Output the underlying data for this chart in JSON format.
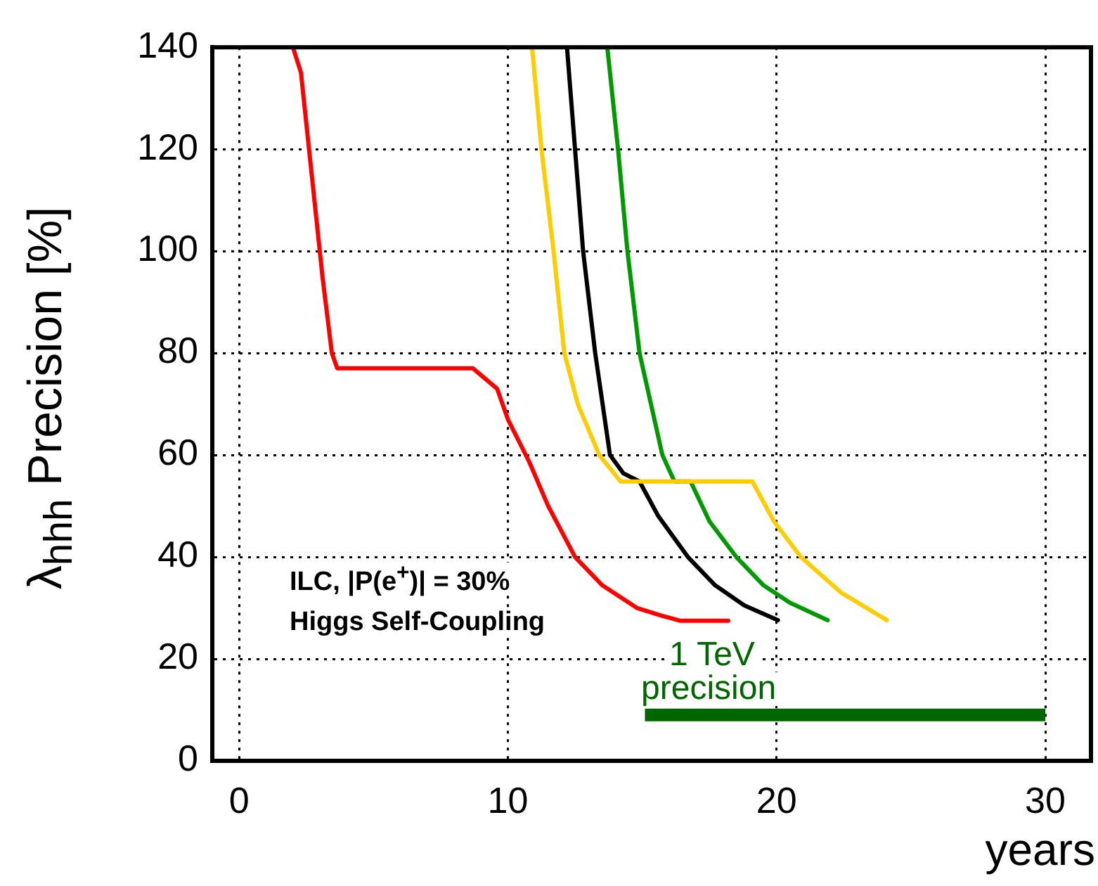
{
  "chart_data": {
    "type": "line",
    "xlabel": "years",
    "ylabel": "λ$_{hhh}$ Precision [%]",
    "xlim": [
      -1,
      31.7
    ],
    "ylim": [
      0,
      140
    ],
    "xticks": [
      0,
      10,
      20,
      30
    ],
    "yticks": [
      0,
      20,
      40,
      60,
      80,
      100,
      120,
      140
    ],
    "grid": true,
    "marker": "none",
    "annotations": [
      "ILC, |P(e$^{+}$)| = 30%",
      "Higgs Self-Coupling",
      "1 TeV",
      "precision"
    ],
    "series": [
      {
        "color": "#ff0000",
        "x": [
          2.0,
          2.3,
          2.7,
          3.1,
          3.45,
          3.65,
          8.7,
          9.6,
          10.0,
          10.8,
          11.5,
          12.5,
          13.5,
          14.8,
          15.7,
          16.4,
          18.2
        ],
        "values": [
          140,
          135,
          115,
          95,
          80,
          77,
          77,
          73,
          67,
          58.6,
          50,
          40,
          34.5,
          30,
          28.5,
          27.5,
          27.5
        ]
      },
      {
        "color": "#ffcc00",
        "x": [
          10.9,
          11.25,
          11.7,
          12.1,
          12.6,
          13.4,
          14.2,
          19.1,
          19.9,
          20.9,
          22.4,
          24.1
        ],
        "values": [
          140,
          120,
          100,
          80,
          70,
          60,
          54.8,
          54.8,
          47,
          40,
          33,
          27.6
        ]
      },
      {
        "color": "#000000",
        "x": [
          12.2,
          12.5,
          12.8,
          13.25,
          13.8,
          14.3,
          14.9,
          15.6,
          16.7,
          17.7,
          18.8,
          20.05
        ],
        "values": [
          140,
          120,
          100,
          80,
          60,
          56.4,
          54.8,
          48,
          40,
          34.5,
          30.5,
          27.6
        ]
      },
      {
        "color": "#009900",
        "x": [
          13.7,
          14.1,
          14.45,
          14.9,
          15.75,
          16.2,
          16.8,
          17.5,
          18.5,
          19.5,
          20.5,
          21.9
        ],
        "values": [
          140,
          120,
          100,
          80,
          60,
          54.8,
          54.8,
          47,
          40,
          34.5,
          31,
          27.6
        ]
      },
      {
        "color": "#006600",
        "x": [
          15.1,
          30.0
        ],
        "values": [
          9,
          9
        ]
      }
    ]
  }
}
